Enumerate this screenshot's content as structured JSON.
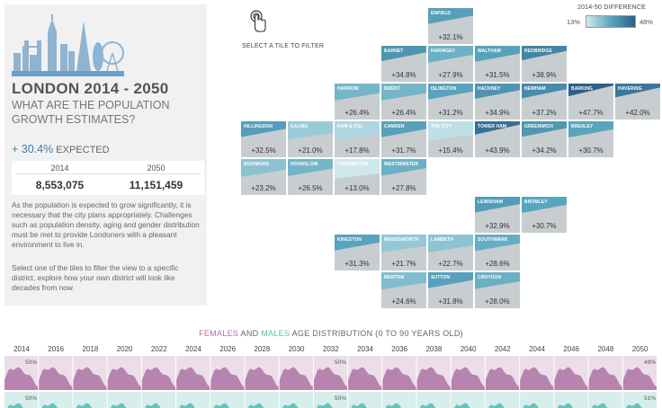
{
  "summary": {
    "title": "LONDON 2014 - 2050",
    "subtitle": "WHAT ARE THE POPULATION GROWTH ESTIMATES?",
    "expected_pct": "+ 30.4%",
    "expected_label": "EXPECTED",
    "year_start": "2014",
    "year_end": "2050",
    "pop_start": "8,553,075",
    "pop_end": "11,151,459",
    "paragraph_1": "As the population is expected to grow significantly, it is necessary that the city plans appropriately. Challenges such as population density, aging and gender distribution must be met to provide Londoners with a pleasant environment to live in.",
    "paragraph_2": "Select one of the tiles to filter the view to a specific district, explore how your own district will look like decades from now."
  },
  "hint": "SELECT A TILE TO FILTER",
  "legend": {
    "title": "2014-50 DIFFERENCE",
    "min": "13%",
    "max": "48%"
  },
  "tiles": [
    {
      "name": "ENFIELD",
      "pct": "+32.1%",
      "value": 32.1,
      "col": 4,
      "row": 0
    },
    {
      "name": "BARNET",
      "pct": "+34.8%",
      "value": 34.8,
      "col": 3,
      "row": 1
    },
    {
      "name": "HARINGEY",
      "pct": "+27.9%",
      "value": 27.9,
      "col": 4,
      "row": 1
    },
    {
      "name": "WALTHAM",
      "pct": "+31.5%",
      "value": 31.5,
      "col": 5,
      "row": 1
    },
    {
      "name": "REDBRIDGE",
      "pct": "+38.9%",
      "value": 38.9,
      "col": 6,
      "row": 1
    },
    {
      "name": "HARROW",
      "pct": "+26.4%",
      "value": 26.4,
      "col": 2,
      "row": 2
    },
    {
      "name": "BRENT",
      "pct": "+26.4%",
      "value": 26.4,
      "col": 3,
      "row": 2
    },
    {
      "name": "ISLINGTON",
      "pct": "+31.2%",
      "value": 31.2,
      "col": 4,
      "row": 2
    },
    {
      "name": "HACKNEY",
      "pct": "+34.9%",
      "value": 34.9,
      "col": 5,
      "row": 2
    },
    {
      "name": "NEWHAM",
      "pct": "+37.2%",
      "value": 37.2,
      "col": 6,
      "row": 2
    },
    {
      "name": "BARKING",
      "pct": "+47.7%",
      "value": 47.7,
      "col": 7,
      "row": 2
    },
    {
      "name": "HAVERING",
      "pct": "+42.0%",
      "value": 42.0,
      "col": 8,
      "row": 2
    },
    {
      "name": "HILLINGDON",
      "pct": "+32.5%",
      "value": 32.5,
      "col": 0,
      "row": 3
    },
    {
      "name": "EALING",
      "pct": "+21.0%",
      "value": 21.0,
      "col": 1,
      "row": 3
    },
    {
      "name": "HAM & FUL",
      "pct": "+17.8%",
      "value": 17.8,
      "col": 2,
      "row": 3
    },
    {
      "name": "CAMDEN",
      "pct": "+31.7%",
      "value": 31.7,
      "col": 3,
      "row": 3
    },
    {
      "name": "THE CITY",
      "pct": "+15.4%",
      "value": 15.4,
      "col": 4,
      "row": 3
    },
    {
      "name": "TOWER HAM",
      "pct": "+43.9%",
      "value": 43.9,
      "col": 5,
      "row": 3
    },
    {
      "name": "GREENWICH",
      "pct": "+34.2%",
      "value": 34.2,
      "col": 6,
      "row": 3
    },
    {
      "name": "BREXLEY",
      "pct": "+30.7%",
      "value": 30.7,
      "col": 7,
      "row": 3
    },
    {
      "name": "RICHMOND",
      "pct": "+23.2%",
      "value": 23.2,
      "col": 0,
      "row": 4
    },
    {
      "name": "HOUNSLOW",
      "pct": "+26.5%",
      "value": 26.5,
      "col": 1,
      "row": 4
    },
    {
      "name": "KENSINGTON",
      "pct": "+13.0%",
      "value": 13.0,
      "col": 2,
      "row": 4
    },
    {
      "name": "WESTMINSTER",
      "pct": "+27.8%",
      "value": 27.8,
      "col": 3,
      "row": 4
    },
    {
      "name": "LEWISHAM",
      "pct": "+32.9%",
      "value": 32.9,
      "col": 5,
      "row": 5
    },
    {
      "name": "BROMLEY",
      "pct": "+30.7%",
      "value": 30.7,
      "col": 6,
      "row": 5
    },
    {
      "name": "KINGSTON",
      "pct": "+31.3%",
      "value": 31.3,
      "col": 2,
      "row": 6
    },
    {
      "name": "WANDSWORTH",
      "pct": "+21.7%",
      "value": 21.7,
      "col": 3,
      "row": 6
    },
    {
      "name": "LAMBETH",
      "pct": "+22.7%",
      "value": 22.7,
      "col": 4,
      "row": 6
    },
    {
      "name": "SOUTHWARK",
      "pct": "+28.6%",
      "value": 28.6,
      "col": 5,
      "row": 6
    },
    {
      "name": "MERTON",
      "pct": "+24.6%",
      "value": 24.6,
      "col": 3,
      "row": 7
    },
    {
      "name": "SUTTON",
      "pct": "+31.8%",
      "value": 31.8,
      "col": 4,
      "row": 7
    },
    {
      "name": "CROYDON",
      "pct": "+28.0%",
      "value": 28.0,
      "col": 5,
      "row": 7
    }
  ],
  "distribution": {
    "title_females": "FEMALES",
    "title_and": "AND",
    "title_males": "MALES",
    "title_rest": "AGE DISTRIBUTION (0 TO 90 YEARS OLD)",
    "years": [
      "2014",
      "2016",
      "2018",
      "2020",
      "2022",
      "2024",
      "2026",
      "2028",
      "2030",
      "2032",
      "2034",
      "2036",
      "2038",
      "2040",
      "2042",
      "2044",
      "2046",
      "2048",
      "2050"
    ],
    "female_pct_start": "50%",
    "female_pct_mid": "50%",
    "female_pct_end": "49%",
    "male_pct_start": "50%",
    "male_pct_mid": "50%",
    "male_pct_end": "51%",
    "female_color": "#b07aa8",
    "male_color": "#5bbdb3"
  },
  "colors": {
    "tile_base": "#c8cdd0",
    "scale_low": "#cfe8ec",
    "scale_mid": "#5aa6bf",
    "scale_high": "#2b5f8a",
    "accent": "#3f7fb0"
  }
}
